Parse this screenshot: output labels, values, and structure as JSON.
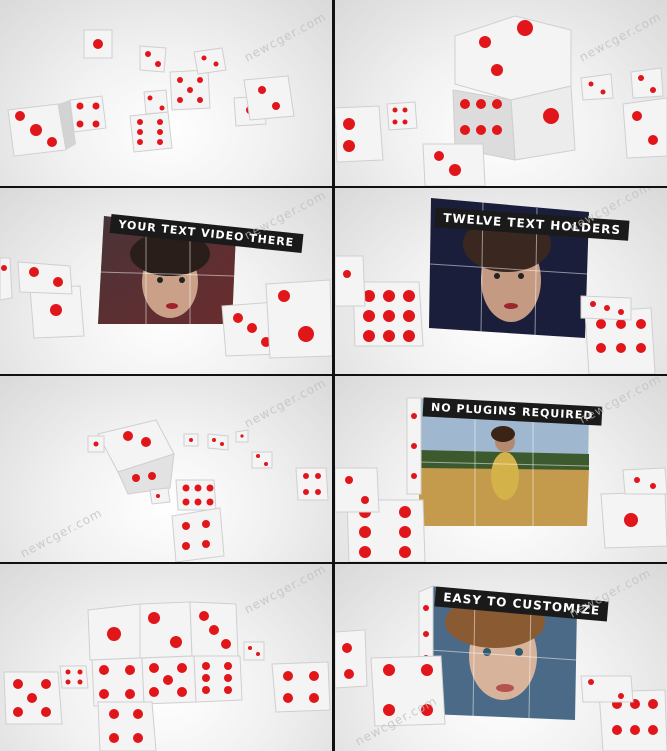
{
  "watermark": "newcger.com",
  "panels": [
    {
      "id": 1,
      "caption": ""
    },
    {
      "id": 2,
      "caption": ""
    },
    {
      "id": 3,
      "caption": "YOUR TEXT VIDEO THERE"
    },
    {
      "id": 4,
      "caption": "TWELVE TEXT HOLDERS"
    },
    {
      "id": 5,
      "caption": ""
    },
    {
      "id": 6,
      "caption": "NO PLUGINS REQUIRED"
    },
    {
      "id": 7,
      "caption": ""
    },
    {
      "id": 8,
      "caption": "EASY TO CUSTOMIZE"
    }
  ],
  "colors": {
    "die_face": "#f4f4f4",
    "die_side": "#d6d6d6",
    "pip": "#e0161b",
    "banner": "#1a1a1a"
  }
}
